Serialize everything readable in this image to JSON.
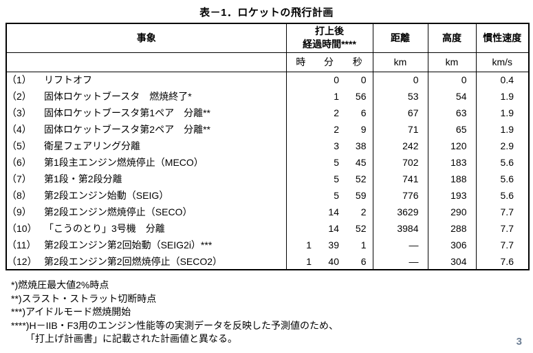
{
  "page": {
    "title": "表－1．ロケットの飛行計画",
    "page_number": "3"
  },
  "table": {
    "headers": {
      "event": "事象",
      "elapsed_line1": "打上後",
      "elapsed_line2": "経過時間****",
      "distance": "距離",
      "altitude": "高度",
      "velocity": "慣性速度"
    },
    "units": {
      "hour": "時",
      "minute": "分",
      "second": "秒",
      "distance": "km",
      "altitude": "km",
      "velocity": "km/s"
    },
    "rows": [
      {
        "no": "（1）",
        "event": "リフトオフ",
        "h": "",
        "m": "0",
        "s": "0",
        "dist": "0",
        "alt": "0",
        "vel": "0.4"
      },
      {
        "no": "（2）",
        "event": "固体ロケットブースタ　燃焼終了*",
        "h": "",
        "m": "1",
        "s": "56",
        "dist": "53",
        "alt": "54",
        "vel": "1.9"
      },
      {
        "no": "（3）",
        "event": "固体ロケットブースタ第1ペア　分離**",
        "h": "",
        "m": "2",
        "s": "6",
        "dist": "67",
        "alt": "63",
        "vel": "1.9"
      },
      {
        "no": "（4）",
        "event": "固体ロケットブースタ第2ペア　分離**",
        "h": "",
        "m": "2",
        "s": "9",
        "dist": "71",
        "alt": "65",
        "vel": "1.9"
      },
      {
        "no": "（5）",
        "event": "衛星フェアリング分離",
        "h": "",
        "m": "3",
        "s": "38",
        "dist": "242",
        "alt": "120",
        "vel": "2.9"
      },
      {
        "no": "（6）",
        "event": "第1段主エンジン燃焼停止（MECO）",
        "h": "",
        "m": "5",
        "s": "45",
        "dist": "702",
        "alt": "183",
        "vel": "5.6"
      },
      {
        "no": "（7）",
        "event": "第1段・第2段分離",
        "h": "",
        "m": "5",
        "s": "52",
        "dist": "741",
        "alt": "188",
        "vel": "5.6"
      },
      {
        "no": "（8）",
        "event": "第2段エンジン始動（SEIG）",
        "h": "",
        "m": "5",
        "s": "59",
        "dist": "776",
        "alt": "193",
        "vel": "5.6"
      },
      {
        "no": "（9）",
        "event": "第2段エンジン燃焼停止（SECO）",
        "h": "",
        "m": "14",
        "s": "2",
        "dist": "3629",
        "alt": "290",
        "vel": "7.7"
      },
      {
        "no": "（10）",
        "event": "「こうのとり」3号機　分離",
        "h": "",
        "m": "14",
        "s": "52",
        "dist": "3984",
        "alt": "288",
        "vel": "7.7"
      },
      {
        "no": "（11）",
        "event": "第2段エンジン第2回始動（SEIG2i）***",
        "h": "1",
        "m": "39",
        "s": "1",
        "dist": "―",
        "alt": "306",
        "vel": "7.7"
      },
      {
        "no": "（12）",
        "event": "第2段エンジン第2回燃焼停止（SECO2）",
        "h": "1",
        "m": "40",
        "s": "6",
        "dist": "―",
        "alt": "304",
        "vel": "7.6"
      }
    ]
  },
  "footnotes": [
    "*)燃焼圧最大値2%時点",
    "**)スラスト・ストラット切断時点",
    "***)アイドルモード燃焼開始",
    "****)H－IIB・F3用のエンジン性能等の実測データを反映した予測値のため、",
    "　　「打上げ計画書」に記載された計画値と異なる。"
  ],
  "colors": {
    "page_number": "#6d7f95"
  }
}
